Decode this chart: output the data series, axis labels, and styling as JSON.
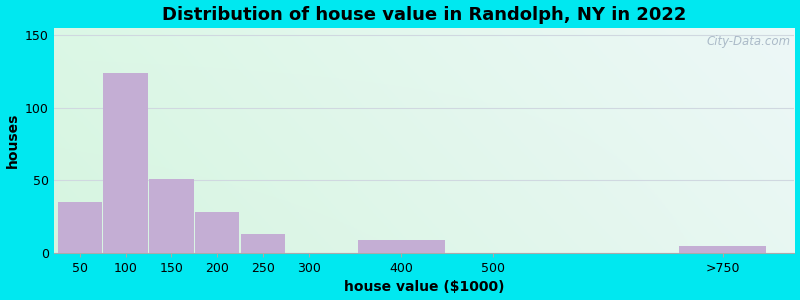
{
  "title": "Distribution of house value in Randolph, NY in 2022",
  "xlabel": "house value ($1000)",
  "ylabel": "houses",
  "bar_values": [
    35,
    124,
    51,
    28,
    13,
    0,
    9,
    0,
    5
  ],
  "bar_labels": [
    "50",
    "100",
    "150",
    "200",
    "250",
    "300",
    "400",
    "500",
    ">750"
  ],
  "bar_color": "#c4aed4",
  "ylim": [
    0,
    155
  ],
  "yticks": [
    0,
    50,
    100,
    150
  ],
  "background_outer": "#00e8f0",
  "title_fontsize": 13,
  "axis_label_fontsize": 10,
  "tick_fontsize": 9,
  "watermark": "City-Data.com",
  "grad_topleft": [
    0.86,
    0.97,
    0.9
  ],
  "grad_topright": [
    0.93,
    0.97,
    0.97
  ],
  "grad_botleft": [
    0.84,
    0.96,
    0.88
  ],
  "grad_botright": [
    0.91,
    0.97,
    0.95
  ],
  "grid_color": "#d0d8e0",
  "x_positions": [
    50,
    100,
    150,
    200,
    250,
    300,
    400,
    500,
    750
  ],
  "x_widths": [
    48,
    48,
    48,
    48,
    48,
    48,
    95,
    48,
    95
  ],
  "x_tick_positions": [
    50,
    100,
    150,
    200,
    250,
    300,
    400,
    500,
    750
  ],
  "x_tick_labels": [
    "50",
    "100",
    "150",
    "200",
    "250",
    "300",
    "400",
    "500",
    ">750"
  ],
  "xlim": [
    22,
    828
  ]
}
